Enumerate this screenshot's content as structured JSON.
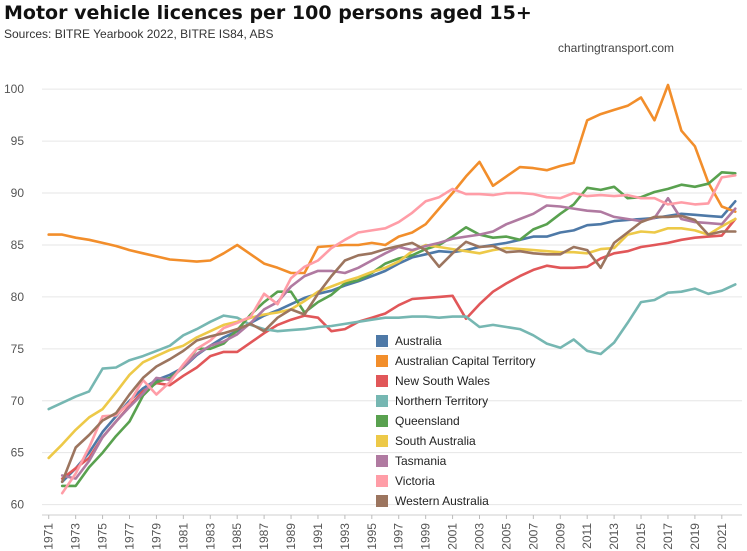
{
  "title": "Motor vehicle licences per 100 persons aged 15+",
  "subtitle": "Sources: BITRE Yearbook 2022, BITRE IS84, ABS",
  "watermark": "chartingtransport.com",
  "chart_data": {
    "type": "line",
    "grid": true,
    "legend_position": "center",
    "ylim": [
      59,
      103
    ],
    "xlim": [
      1970.5,
      2022.5
    ],
    "y_ticks": [
      60,
      65,
      70,
      75,
      80,
      85,
      90,
      95,
      100
    ],
    "x_ticks": [
      1971,
      1973,
      1975,
      1977,
      1979,
      1981,
      1983,
      1985,
      1987,
      1989,
      1991,
      1993,
      1995,
      1997,
      1999,
      2001,
      2003,
      2005,
      2007,
      2009,
      2011,
      2013,
      2015,
      2017,
      2019,
      2021
    ],
    "x": [
      1971,
      1972,
      1973,
      1974,
      1975,
      1976,
      1977,
      1978,
      1979,
      1980,
      1981,
      1982,
      1983,
      1984,
      1985,
      1986,
      1987,
      1988,
      1989,
      1990,
      1991,
      1992,
      1993,
      1994,
      1995,
      1996,
      1997,
      1998,
      1999,
      2000,
      2001,
      2002,
      2003,
      2004,
      2005,
      2006,
      2007,
      2008,
      2009,
      2010,
      2011,
      2012,
      2013,
      2014,
      2015,
      2016,
      2017,
      2018,
      2019,
      2020,
      2021,
      2022
    ],
    "series": [
      {
        "name": "Australia",
        "color": "#4e79a7",
        "values": [
          null,
          62.2,
          63.5,
          65,
          67,
          68.5,
          70,
          71.2,
          72,
          72.5,
          73.2,
          74.4,
          75.3,
          76.1,
          76.7,
          77.5,
          78.2,
          78.7,
          79.3,
          79.9,
          80.3,
          80.6,
          81.1,
          81.5,
          82,
          82.5,
          83.2,
          83.8,
          84.1,
          84.4,
          84.3,
          84.5,
          84.8,
          85,
          85.2,
          85.5,
          85.8,
          85.8,
          86.2,
          86.4,
          86.9,
          87,
          87.3,
          87.4,
          87.5,
          87.6,
          87.8,
          88,
          87.9,
          87.8,
          87.7,
          89.2
        ]
      },
      {
        "name": "Australian Capital Territory",
        "color": "#f28e2b",
        "values": [
          86,
          86,
          85.7,
          85.5,
          85.2,
          84.9,
          84.5,
          84.2,
          83.9,
          83.6,
          83.5,
          83.4,
          83.5,
          84.2,
          85,
          84.1,
          83.2,
          82.8,
          82.3,
          82.3,
          84.8,
          84.9,
          85,
          85,
          85.2,
          85,
          85.8,
          86.2,
          87,
          88.5,
          90,
          91.6,
          93,
          90.7,
          91.6,
          92.5,
          92.4,
          92.2,
          92.6,
          92.9,
          97,
          97.6,
          98,
          98.4,
          99.2,
          97,
          100.4,
          96,
          94.5,
          91,
          88.7,
          88.2
        ]
      },
      {
        "name": "New South Wales",
        "color": "#e15759",
        "values": [
          null,
          62.5,
          63.5,
          64.5,
          66.5,
          68,
          69.5,
          70.9,
          71.7,
          71.5,
          72.4,
          73.2,
          74.3,
          74.7,
          74.7,
          75.6,
          76.5,
          77.3,
          77.8,
          78.2,
          78,
          76.7,
          76.9,
          77.6,
          78,
          78.4,
          79.2,
          79.8,
          79.9,
          80,
          80.1,
          77.9,
          79.3,
          80.5,
          81.3,
          82,
          82.6,
          83,
          82.8,
          82.8,
          82.9,
          83.7,
          84.2,
          84.4,
          84.8,
          85,
          85.2,
          85.5,
          85.7,
          85.8,
          85.9,
          87.5
        ]
      },
      {
        "name": "Northern Territory",
        "color": "#76b7b2",
        "values": [
          69.2,
          69.8,
          70.4,
          70.9,
          73.1,
          73.2,
          73.9,
          74.3,
          74.8,
          75.3,
          76.3,
          76.9,
          77.6,
          78.2,
          78,
          77.3,
          76.9,
          76.7,
          76.8,
          76.9,
          77.1,
          77.2,
          77.4,
          77.6,
          77.8,
          78,
          78,
          78.1,
          78.1,
          78,
          78.1,
          78.1,
          77.1,
          77.3,
          77.1,
          76.9,
          76.3,
          75.5,
          75.1,
          75.9,
          74.8,
          74.5,
          75.6,
          77.5,
          79.5,
          79.7,
          80.4,
          80.5,
          80.8,
          80.3,
          80.6,
          81.2
        ]
      },
      {
        "name": "Queensland",
        "color": "#59a14f",
        "values": [
          null,
          61.8,
          61.8,
          63.6,
          65,
          66.6,
          68,
          70.5,
          71.8,
          72.2,
          73.2,
          75,
          75,
          75.5,
          76.8,
          78.3,
          79.5,
          80.5,
          80.5,
          78.5,
          79.5,
          80.2,
          81.3,
          81.6,
          82.3,
          83.2,
          83.7,
          84,
          84.6,
          85,
          85.8,
          86.7,
          86,
          85.7,
          85.8,
          85.5,
          86.5,
          87,
          88,
          88.9,
          90.5,
          90.3,
          90.6,
          89.5,
          89.6,
          90.1,
          90.4,
          90.8,
          90.6,
          90.9,
          92,
          91.9
        ]
      },
      {
        "name": "South Australia",
        "color": "#edc948",
        "values": [
          64.5,
          65.8,
          67.2,
          68.4,
          69.2,
          70.8,
          72.5,
          73.7,
          74.3,
          74.9,
          75.3,
          76.1,
          76.7,
          77.3,
          77.6,
          78,
          78.3,
          78.5,
          78.8,
          79.6,
          80.5,
          81,
          81.5,
          81.9,
          82.4,
          82.8,
          83.4,
          84.4,
          85,
          84.8,
          84.6,
          84.4,
          84.2,
          84.5,
          84.7,
          84.6,
          84.5,
          84.4,
          84.3,
          84.3,
          84.2,
          84.6,
          84.7,
          86,
          86.3,
          86.2,
          86.6,
          86.6,
          86.4,
          86,
          86.8,
          87.5
        ]
      },
      {
        "name": "Tasmania",
        "color": "#b07aa1",
        "values": [
          null,
          62.8,
          62.5,
          64.2,
          66.5,
          68,
          69.4,
          70.7,
          72.2,
          72,
          73.3,
          74.5,
          75.3,
          75.7,
          76.4,
          77.5,
          78.8,
          79.5,
          81,
          82,
          82.5,
          82.5,
          82.3,
          82.8,
          83.5,
          84.2,
          84.8,
          84.5,
          84.9,
          85.2,
          85.6,
          85.8,
          86,
          86.3,
          87,
          87.5,
          88,
          88.8,
          88.7,
          88.5,
          88.3,
          88.2,
          87.7,
          87.5,
          87.3,
          87.6,
          89.5,
          87.5,
          87.2,
          87.1,
          87,
          88.5
        ]
      },
      {
        "name": "Victoria",
        "color": "#ff9da7",
        "values": [
          null,
          61.1,
          63,
          65.5,
          68.5,
          68.6,
          69.8,
          72,
          70.6,
          71.8,
          73.5,
          75,
          75.8,
          77,
          77.5,
          78.1,
          80.3,
          79.3,
          81.8,
          82.9,
          83.5,
          84.7,
          85.5,
          86.2,
          86.4,
          86.6,
          87.2,
          88.1,
          89.2,
          89.6,
          90.4,
          89.9,
          89.9,
          89.8,
          90,
          90,
          89.9,
          89.6,
          89.5,
          90,
          89.7,
          89.8,
          89.7,
          89.8,
          89.5,
          89.5,
          88.9,
          89.1,
          88.9,
          89,
          91.5,
          91.7
        ]
      },
      {
        "name": "Western Australia",
        "color": "#9c755f",
        "values": [
          null,
          62.2,
          65.5,
          66.7,
          68.1,
          68.8,
          70.6,
          72.2,
          73.3,
          74,
          74.8,
          75.8,
          76.2,
          76.5,
          76.9,
          77.4,
          76.7,
          78,
          78.8,
          78.3,
          80.3,
          82,
          83.5,
          84,
          84.2,
          84.6,
          84.9,
          85.2,
          84.5,
          82.9,
          84.2,
          85.3,
          84.8,
          84.9,
          84.3,
          84.4,
          84.2,
          84.1,
          84.1,
          84.8,
          84.5,
          82.8,
          85.2,
          86.2,
          87.2,
          87.7,
          87.7,
          87.8,
          87.4,
          86,
          86.3,
          86.3
        ]
      }
    ]
  }
}
